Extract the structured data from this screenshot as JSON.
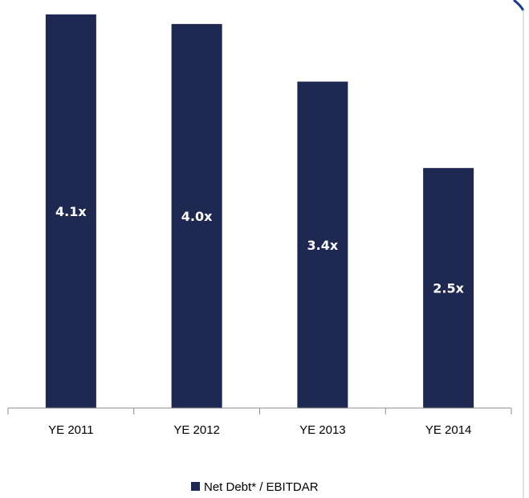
{
  "chart_data": {
    "type": "bar",
    "categories": [
      "YE 2011",
      "YE 2012",
      "YE 2013",
      "YE 2014"
    ],
    "series": [
      {
        "name": "Net Debt* / EBITDAR",
        "values": [
          4.1,
          4.0,
          3.4,
          2.5
        ],
        "data_labels": [
          "4.1x",
          "4.0x",
          "3.4x",
          "2.5x"
        ]
      }
    ],
    "ylim": [
      0,
      4.25
    ],
    "grid": false,
    "legend_position": "bottom-center",
    "colors": {
      "bar": "#1f2851",
      "axis": "#8c8c8c",
      "frame": "#c8c8c8",
      "corner_accent": "#1f3a8a"
    }
  }
}
